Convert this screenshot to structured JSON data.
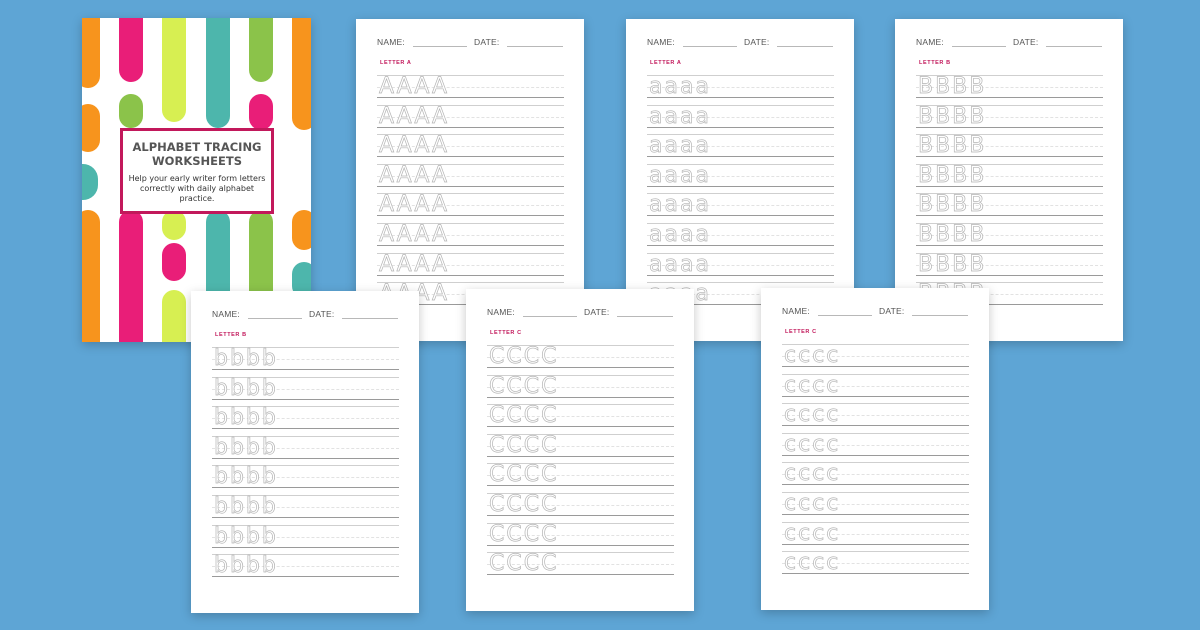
{
  "cover": {
    "title": "ALPHABET TRACING WORKSHEETS",
    "subtitle": "Help your early writer form letters correctly with daily alphabet practice.",
    "colors": [
      "#f7941d",
      "#e91e78",
      "#d7ef52",
      "#8bc34a",
      "#4db6ac",
      "#c2185b"
    ]
  },
  "header": {
    "name_label": "NAME:",
    "date_label": "DATE:"
  },
  "sheets": [
    {
      "letter_label": "LETTER A",
      "rows": [
        "AAAA",
        "AAAA",
        "AAAA",
        "AAAA",
        "AAAA",
        "AAAA",
        "AAAA",
        "AAAA"
      ]
    },
    {
      "letter_label": "LETTER A",
      "rows": [
        "aaaa",
        "aaaa",
        "aaaa",
        "aaaa",
        "aaaa",
        "aaaa",
        "aaaa",
        "aaaa"
      ]
    },
    {
      "letter_label": "LETTER B",
      "rows": [
        "BBBB",
        "BBBB",
        "BBBB",
        "BBBB",
        "BBBB",
        "BBBB",
        "BBBB",
        "BBBB"
      ]
    },
    {
      "letter_label": "LETTER B",
      "rows": [
        "bbbb",
        "bbbb",
        "bbbb",
        "bbbb",
        "bbbb",
        "bbbb",
        "bbbb",
        "bbbb"
      ]
    },
    {
      "letter_label": "LETTER C",
      "rows": [
        "CCCC",
        "CCCC",
        "CCCC",
        "CCCC",
        "CCCC",
        "CCCC",
        "CCCC",
        "CCCC"
      ]
    },
    {
      "letter_label": "LETTER C",
      "rows": [
        "cccc",
        "cccc",
        "cccc",
        "cccc",
        "cccc",
        "cccc",
        "cccc",
        "cccc"
      ]
    }
  ]
}
